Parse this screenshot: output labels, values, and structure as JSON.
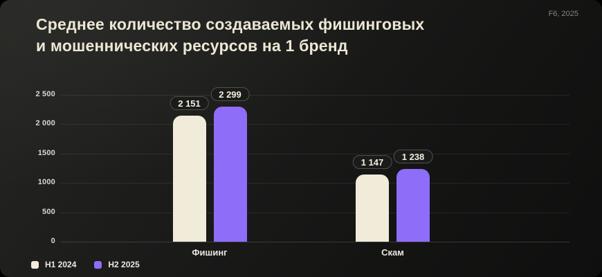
{
  "header": {
    "title_line1": "Среднее количество создаваемых фишинговых",
    "title_line2": "и мошеннических ресурсов на 1 бренд",
    "source": "F6, 2025"
  },
  "colors": {
    "series_h1_2024": "#f1ebd9",
    "series_h2_2025": "#8e6df8",
    "title_text": "#ece7d4",
    "axis_text": "#d9d7d0",
    "badge_border": "#50504d",
    "badge_background": "#1b1b1a"
  },
  "chart_data": {
    "type": "bar",
    "title": "Среднее количество создаваемых фишинговых и мошеннических ресурсов на 1 бренд",
    "categories": [
      "Фишинг",
      "Скам"
    ],
    "series": [
      {
        "name": "H1 2024",
        "color": "#f1ebd9",
        "values": [
          2151,
          1147
        ],
        "value_labels": [
          "2 151",
          "1 147"
        ]
      },
      {
        "name": "H2 2025",
        "color": "#8e6df8",
        "values": [
          2299,
          1238
        ],
        "value_labels": [
          "2 299",
          "1 238"
        ]
      }
    ],
    "xlabel": "",
    "ylabel": "",
    "ylim": [
      0,
      2500
    ],
    "yticks": [
      {
        "value": 0,
        "label": "0"
      },
      {
        "value": 500,
        "label": "500"
      },
      {
        "value": 1000,
        "label": "1000"
      },
      {
        "value": 1500,
        "label": "1500"
      },
      {
        "value": 2000,
        "label": "2 000"
      },
      {
        "value": 2500,
        "label": "2 500"
      }
    ],
    "grid": true,
    "legend_position": "bottom-left"
  },
  "legend": {
    "items": [
      {
        "label": "H1 2024",
        "color": "#f1ebd9"
      },
      {
        "label": "H2 2025",
        "color": "#8e6df8"
      }
    ]
  }
}
